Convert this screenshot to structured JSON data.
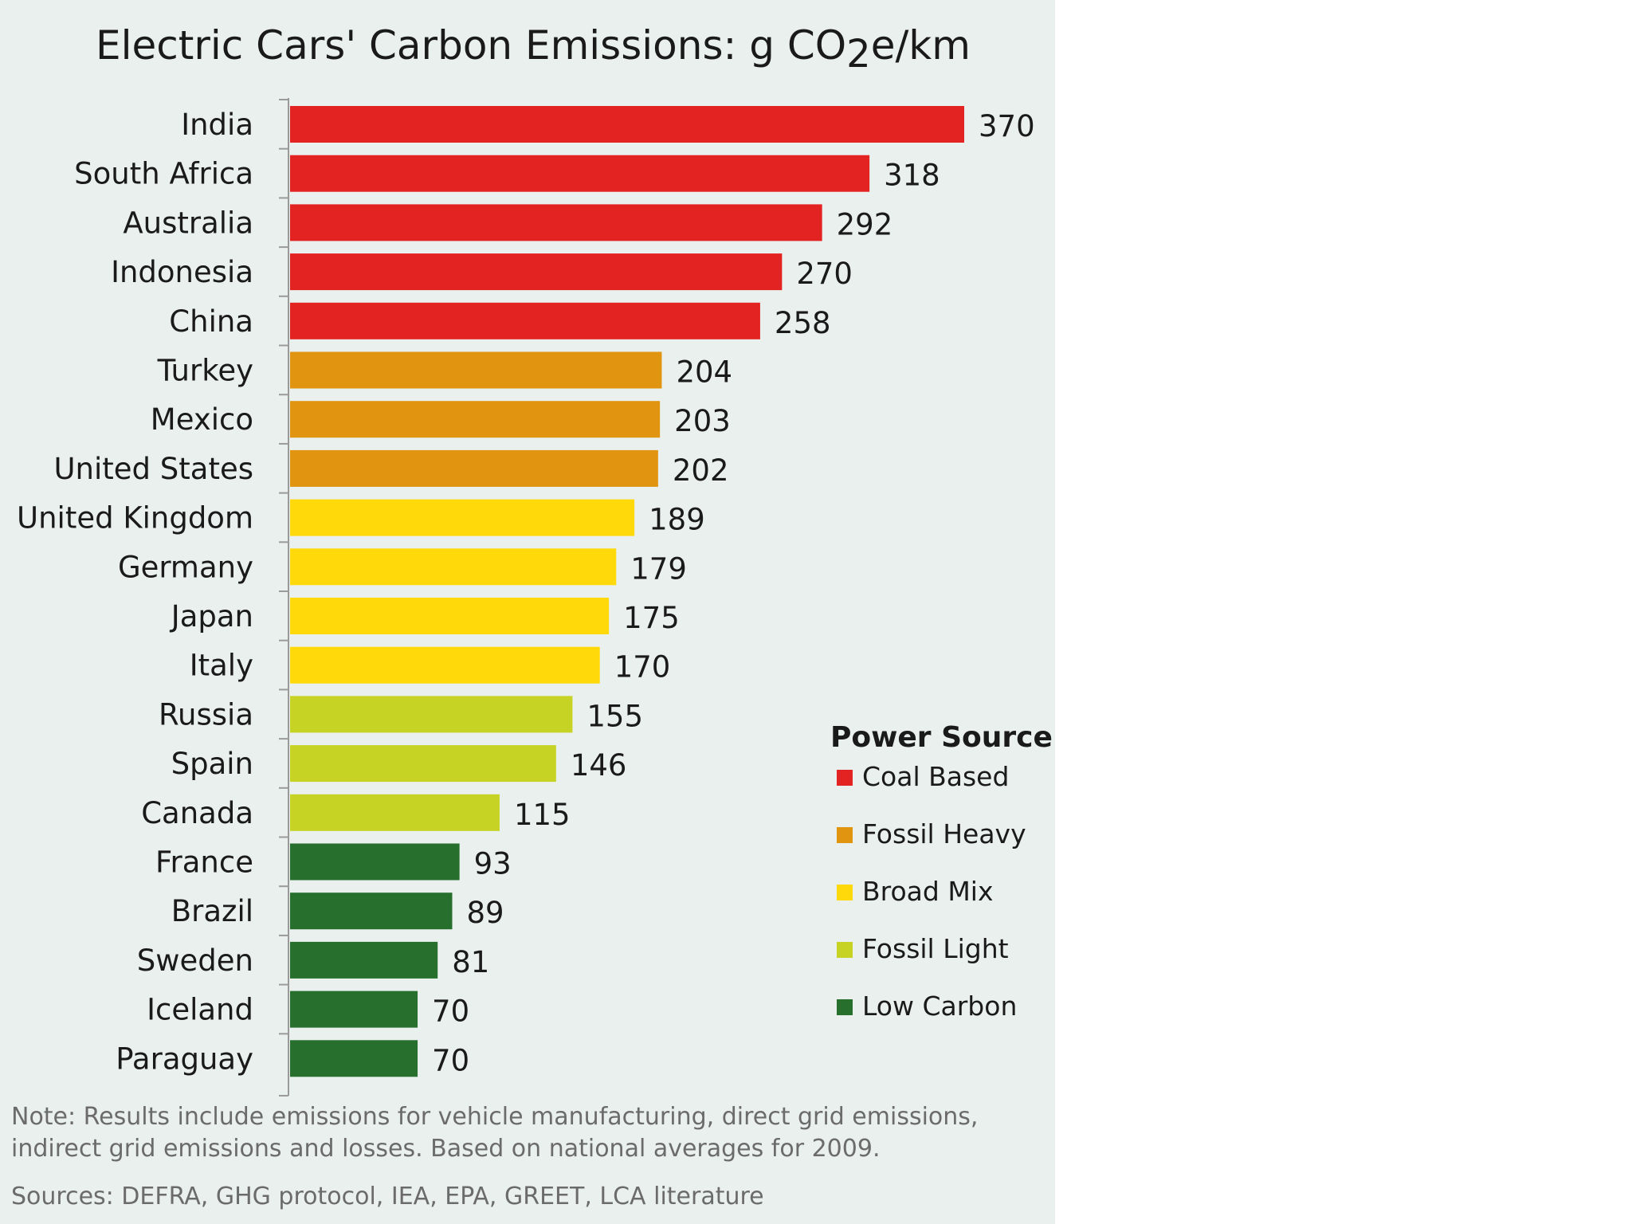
{
  "chart_data": {
    "type": "bar",
    "orientation": "horizontal",
    "title": "Electric Cars' Carbon Emissions: g CO",
    "title_subscript": "2",
    "title_suffix": "e/km",
    "categories": [
      "India",
      "South Africa",
      "Australia",
      "Indonesia",
      "China",
      "Turkey",
      "Mexico",
      "United States",
      "United Kingdom",
      "Germany",
      "Japan",
      "Italy",
      "Russia",
      "Spain",
      "Canada",
      "France",
      "Brazil",
      "Sweden",
      "Iceland",
      "Paraguay"
    ],
    "values": [
      370,
      318,
      292,
      270,
      258,
      204,
      203,
      202,
      189,
      179,
      175,
      170,
      155,
      146,
      115,
      93,
      89,
      81,
      70,
      70
    ],
    "groups": [
      "Coal Based",
      "Coal Based",
      "Coal Based",
      "Coal Based",
      "Coal Based",
      "Fossil Heavy",
      "Fossil Heavy",
      "Fossil Heavy",
      "Broad Mix",
      "Broad Mix",
      "Broad Mix",
      "Broad Mix",
      "Fossil Light",
      "Fossil Light",
      "Fossil Light",
      "Low Carbon",
      "Low Carbon",
      "Low Carbon",
      "Low Carbon",
      "Low Carbon"
    ],
    "xlim": [
      0,
      370
    ],
    "legend": {
      "title": "Power Source",
      "placement": "bottom-right",
      "entries": [
        {
          "name": "Coal Based",
          "color": "#e32322"
        },
        {
          "name": "Fossil Heavy",
          "color": "#e09410"
        },
        {
          "name": "Broad Mix",
          "color": "#ffd90a"
        },
        {
          "name": "Fossil Light",
          "color": "#c6d325"
        },
        {
          "name": "Low Carbon",
          "color": "#266f2d"
        }
      ]
    },
    "grid": false,
    "note": "Note:  Results include emissions for vehicle manufacturing, direct grid emissions,",
    "note_line2": "indirect grid emissions and losses.  Based on national averages for 2009.",
    "sources": "Sources: DEFRA, GHG protocol, IEA, EPA, GREET, LCA literature"
  }
}
